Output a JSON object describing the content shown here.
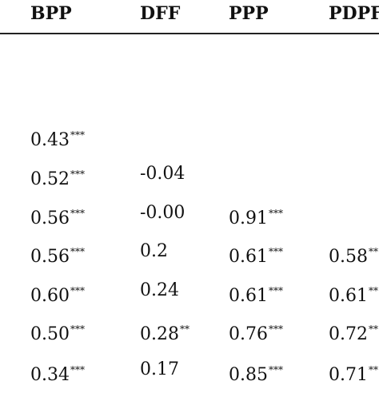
{
  "table": {
    "headers": [
      "BPP",
      "DFF",
      "PPP",
      "PDPF"
    ],
    "rows": [
      [
        {
          "v": "0.43",
          "s": "***"
        },
        null,
        null,
        null
      ],
      [
        {
          "v": "0.52",
          "s": "***"
        },
        {
          "v": "-0.04",
          "s": ""
        },
        null,
        null
      ],
      [
        {
          "v": "0.56",
          "s": "***"
        },
        {
          "v": "-0.00",
          "s": ""
        },
        {
          "v": "0.91",
          "s": "***"
        },
        null
      ],
      [
        {
          "v": "0.56",
          "s": "***"
        },
        {
          "v": "0.2",
          "s": ""
        },
        {
          "v": "0.61",
          "s": "***"
        },
        {
          "v": "0.58",
          "s": "**"
        }
      ],
      [
        {
          "v": "0.60",
          "s": "***"
        },
        {
          "v": "0.24",
          "s": ""
        },
        {
          "v": "0.61",
          "s": "***"
        },
        {
          "v": "0.61",
          "s": "**"
        }
      ],
      [
        {
          "v": "0.50",
          "s": "***"
        },
        {
          "v": "0.28",
          "s": "**"
        },
        {
          "v": "0.76",
          "s": "***"
        },
        {
          "v": "0.72",
          "s": "**"
        }
      ],
      [
        {
          "v": "0.34",
          "s": "***"
        },
        {
          "v": "0.17",
          "s": ""
        },
        {
          "v": "0.85",
          "s": "***"
        },
        {
          "v": "0.71",
          "s": "**"
        }
      ]
    ]
  }
}
